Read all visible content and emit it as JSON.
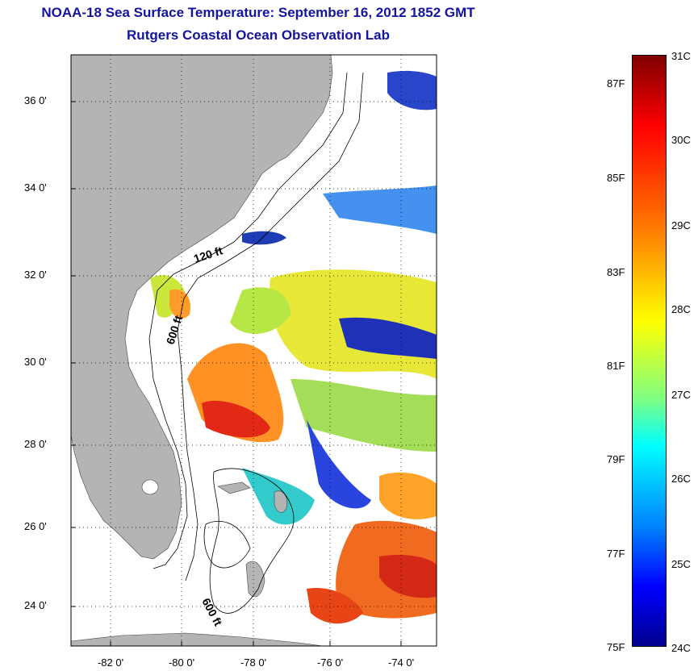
{
  "header": {
    "title": "NOAA-18 Sea Surface Temperature:  September 16, 2012 1852 GMT",
    "subtitle": "Rutgers Coastal Ocean Observation Lab"
  },
  "map": {
    "lat_ticks": [
      "36 0'",
      "34 0'",
      "32 0'",
      "30 0'",
      "28 0'",
      "26 0'",
      "24 0'"
    ],
    "lon_ticks": [
      "-82 0'",
      "-80 0'",
      "-78 0'",
      "-76 0'",
      "-74 0'"
    ],
    "contour_labels": [
      "120 ft",
      "600 ft",
      "600 ft"
    ],
    "colors": {
      "land": "#b4b4b4",
      "ocean_nodata": "#ffffff",
      "grid": "#000000"
    }
  },
  "colorbar": {
    "celsius": [
      "31C",
      "30C",
      "29C",
      "28C",
      "27C",
      "26C",
      "25C",
      "24C"
    ],
    "fahrenheit": [
      "87F",
      "85F",
      "83F",
      "81F",
      "79F",
      "77F",
      "75F"
    ],
    "range_c": [
      24,
      31
    ],
    "colormap": "jet"
  }
}
